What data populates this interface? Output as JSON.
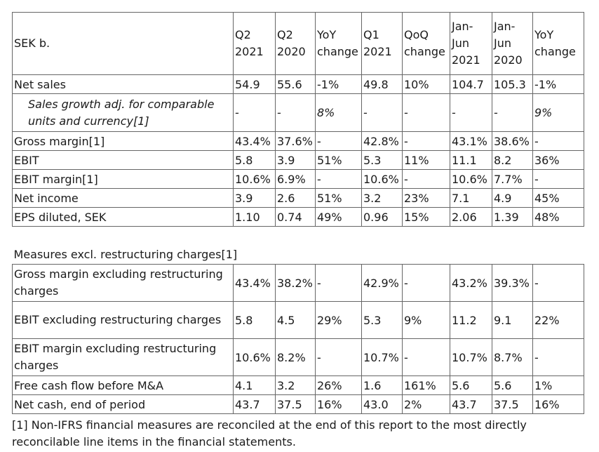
{
  "table": {
    "header": {
      "label": "SEK b.",
      "columns": [
        [
          "Q2",
          "2021"
        ],
        [
          "Q2",
          "2020"
        ],
        [
          "YoY",
          "change"
        ],
        [
          "Q1",
          "2021"
        ],
        [
          "QoQ",
          "change"
        ],
        [
          "Jan-",
          "Jun",
          "2021"
        ],
        [
          "Jan-",
          "Jun",
          "2020"
        ],
        [
          "YoY",
          "change"
        ]
      ]
    },
    "rows_main": [
      {
        "label": "Net sales",
        "italic": false,
        "values": [
          "54.9",
          "55.6",
          "-1%",
          "49.8",
          "10%",
          "104.7",
          "105.3",
          "-1%"
        ]
      },
      {
        "label": "Sales growth adj. for comparable units and currency[1]",
        "italic": true,
        "values": [
          "-",
          "-",
          "8%",
          "-",
          "-",
          "-",
          "-",
          "9%"
        ]
      },
      {
        "label": "Gross margin[1]",
        "italic": false,
        "values": [
          "43.4%",
          "37.6%",
          "-",
          "42.8%",
          "-",
          "43.1%",
          "38.6%",
          "-"
        ]
      },
      {
        "label": "EBIT",
        "italic": false,
        "values": [
          "5.8",
          "3.9",
          "51%",
          "5.3",
          "11%",
          "11.1",
          "8.2",
          "36%"
        ]
      },
      {
        "label": "EBIT margin[1]",
        "italic": false,
        "values": [
          "10.6%",
          "6.9%",
          "-",
          "10.6%",
          "-",
          "10.6%",
          "7.7%",
          "-"
        ]
      },
      {
        "label": "Net income",
        "italic": false,
        "values": [
          "3.9",
          "2.6",
          "51%",
          "3.2",
          "23%",
          "7.1",
          "4.9",
          "45%"
        ]
      },
      {
        "label": "EPS diluted, SEK",
        "italic": false,
        "values": [
          "1.10",
          "0.74",
          "49%",
          "0.96",
          "15%",
          "2.06",
          "1.39",
          "48%"
        ]
      }
    ],
    "section_title": "Measures excl. restructuring charges[1]",
    "rows_excl": [
      {
        "label": "Gross margin excluding restructuring charges",
        "values": [
          "43.4%",
          "38.2%",
          "-",
          "42.9%",
          "-",
          "43.2%",
          "39.3%",
          "-"
        ]
      },
      {
        "label": "EBIT excluding restructuring charges",
        "values": [
          "5.8",
          "4.5",
          "29%",
          "5.3",
          "9%",
          "11.2",
          "9.1",
          "22%"
        ]
      },
      {
        "label": "EBIT margin excluding restructuring charges",
        "values": [
          "10.6%",
          "8.2%",
          "-",
          "10.7%",
          "-",
          "10.7%",
          "8.7%",
          "-"
        ]
      },
      {
        "label": "Free cash flow before M&A",
        "values": [
          "4.1",
          "3.2",
          "26%",
          "1.6",
          "161%",
          "5.6",
          "5.6",
          "1%"
        ]
      },
      {
        "label": "Net cash, end of period",
        "values": [
          "43.7",
          "37.5",
          "16%",
          "43.0",
          "2%",
          "43.7",
          "37.5",
          "16%"
        ]
      }
    ]
  },
  "footnote": "[1] Non-IFRS financial measures are reconciled at the end of this report to the most directly reconcilable line items in the financial statements."
}
